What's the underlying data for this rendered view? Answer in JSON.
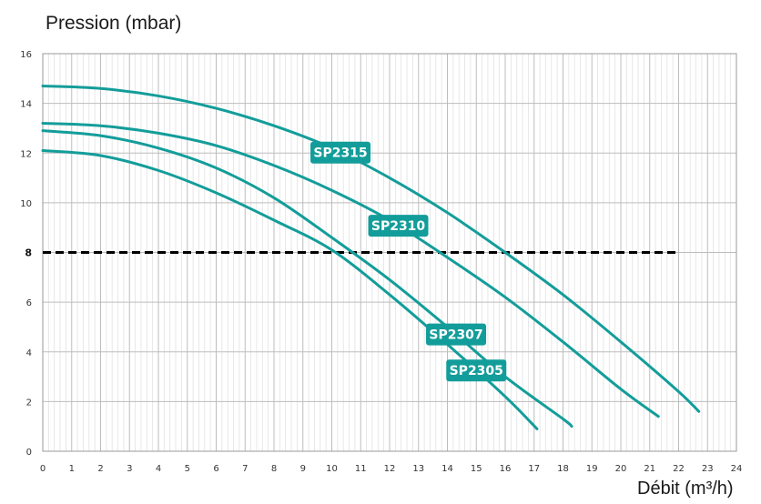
{
  "chart_data": {
    "type": "line",
    "ylabel": "Pression (mbar)",
    "xlabel": "Débit (m³/h)",
    "xlim": [
      0,
      24
    ],
    "ylim": [
      0,
      16
    ],
    "xticks": [
      "0",
      "1",
      "2",
      "3",
      "4",
      "5",
      "6",
      "7",
      "8",
      "9",
      "10",
      "11",
      "12",
      "13",
      "14",
      "15",
      "16",
      "17",
      "18",
      "19",
      "20",
      "21",
      "22",
      "23",
      "24"
    ],
    "yticks": [
      "0",
      "2",
      "4",
      "6",
      "8",
      "10",
      "12",
      "14",
      "16"
    ],
    "reference_line": {
      "y": 8,
      "x_range": [
        0,
        22.0
      ],
      "label": "8",
      "style": "dashed"
    },
    "series": [
      {
        "name": "SP2315",
        "label": "SP2315",
        "x": [
          0,
          2,
          4,
          6,
          8,
          10,
          12,
          14,
          16,
          18,
          20,
          22,
          22.7
        ],
        "y": [
          14.7,
          14.6,
          14.3,
          13.8,
          13.1,
          12.2,
          11.0,
          9.6,
          8.0,
          6.3,
          4.4,
          2.4,
          1.6
        ]
      },
      {
        "name": "SP2310",
        "label": "SP2310",
        "x": [
          0,
          2,
          4,
          6,
          8,
          10,
          12,
          14,
          16,
          18,
          20,
          21.3
        ],
        "y": [
          13.2,
          13.1,
          12.8,
          12.3,
          11.5,
          10.5,
          9.3,
          7.8,
          6.2,
          4.4,
          2.5,
          1.4
        ]
      },
      {
        "name": "SP2307",
        "label": "SP2307",
        "x": [
          0,
          2,
          4,
          6,
          8,
          10,
          12,
          14,
          16,
          18,
          18.3
        ],
        "y": [
          12.9,
          12.7,
          12.2,
          11.4,
          10.2,
          8.6,
          6.9,
          5.0,
          3.0,
          1.3,
          1.0
        ]
      },
      {
        "name": "SP2305",
        "label": "SP2305",
        "x": [
          0,
          2,
          4,
          6,
          8,
          10,
          12,
          14,
          16,
          17.1
        ],
        "y": [
          12.1,
          11.9,
          11.3,
          10.4,
          9.3,
          8.1,
          6.3,
          4.3,
          2.2,
          0.9
        ]
      }
    ],
    "label_anchor_x": {
      "SP2315": 10.3,
      "SP2310": 12.3,
      "SP2307": 14.3,
      "SP2305": 15.0
    },
    "colors": {
      "curve": "#139d9a",
      "label_bg": "#139d9a",
      "grid": "#cccccc",
      "reference": "#000000"
    }
  }
}
